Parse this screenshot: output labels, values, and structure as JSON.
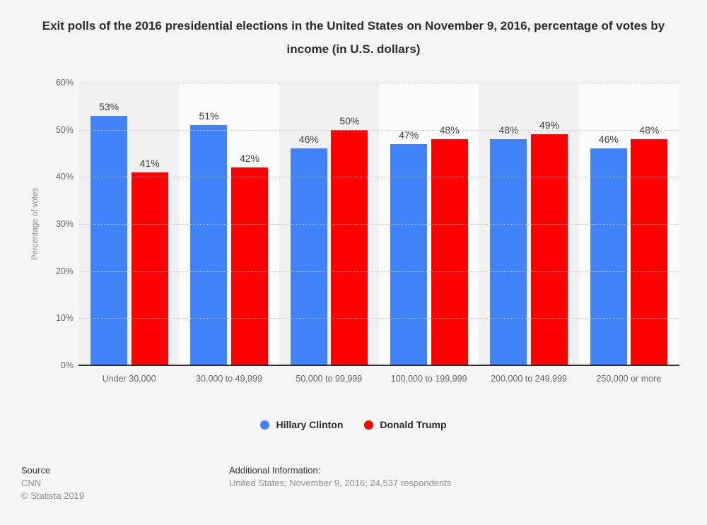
{
  "title": "Exit polls of the 2016 presidential elections in the United States on November 9, 2016, percentage of votes by income (in U.S. dollars)",
  "chart_data": {
    "type": "bar",
    "categories": [
      "Under 30,000",
      "30,000 to 49,999",
      "50,000 to 99,999",
      "100,000 to 199,999",
      "200,000 to 249,999",
      "250,000 or more"
    ],
    "series": [
      {
        "name": "Hillary Clinton",
        "color": "#4182F8",
        "values": [
          53,
          51,
          46,
          47,
          48,
          46
        ]
      },
      {
        "name": "Donald Trump",
        "color": "#FF0000",
        "values": [
          41,
          42,
          50,
          48,
          49,
          48
        ]
      }
    ],
    "title": "Exit polls of the 2016 presidential elections in the United States on November 9, 2016, percentage of votes by income (in U.S. dollars)",
    "xlabel": "",
    "ylabel": "Percentage of votes",
    "ylim": [
      0,
      60
    ],
    "yticks": [
      "0%",
      "10%",
      "20%",
      "30%",
      "40%",
      "50%",
      "60%"
    ],
    "grid": "horizontal dotted",
    "legend_position": "bottom",
    "value_suffix": "%"
  },
  "footer": {
    "source_label": "Source",
    "source_value": "CNN",
    "copyright": "© Statista 2019",
    "additional_label": "Additional Information:",
    "additional_value": "United States; November 9, 2016; 24,537 respondents"
  }
}
